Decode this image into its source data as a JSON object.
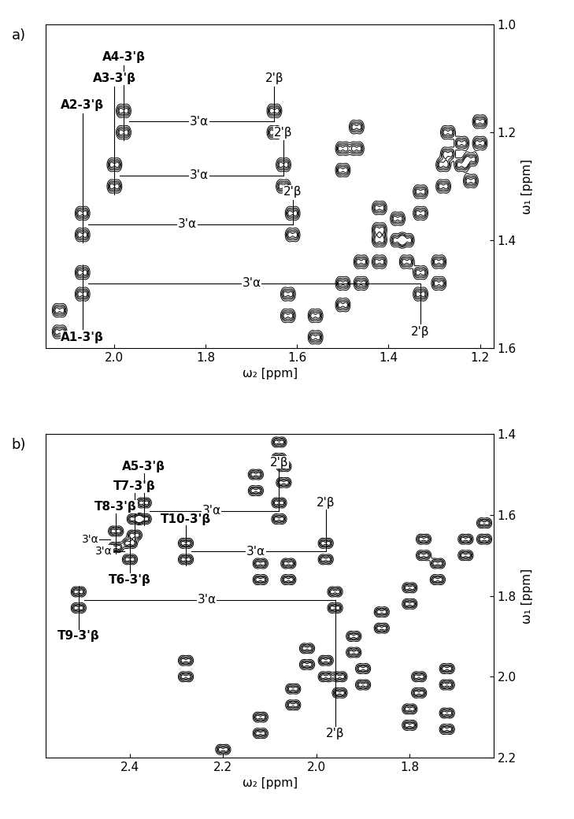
{
  "chart_data": [
    {
      "type": "contour",
      "title": "a)",
      "x_label": "ω₂ [ppm]",
      "y_label": "ω₁ [ppm]",
      "xlim": [
        2.15,
        1.17
      ],
      "ylim": [
        1.6,
        1.0
      ],
      "xticks": [
        2.0,
        1.8,
        1.6,
        1.4,
        1.2
      ],
      "yticks": [
        1.0,
        1.2,
        1.4,
        1.6
      ],
      "walks": [
        {
          "label": "A4-3'β",
          "x": 1.98,
          "y": 1.18,
          "alpha_label": "3'α",
          "beta_label": "2'β",
          "x2": 1.65
        },
        {
          "label": "A3-3'β",
          "x": 2.0,
          "y": 1.28,
          "alpha_label": "3'α",
          "beta_label": "2'β",
          "x2": 1.63
        },
        {
          "label": "A2-3'β",
          "x": 2.07,
          "y": 1.37,
          "alpha_label": "3'α",
          "beta_label": "2'β",
          "x2": 1.61
        },
        {
          "label": "A1-3'β",
          "x": 2.07,
          "y": 1.48,
          "alpha_label": "3'α",
          "beta_label": "2'β",
          "x2": 1.33
        }
      ],
      "peaks": [
        [
          1.62,
          1.52
        ],
        [
          1.5,
          1.25
        ],
        [
          1.47,
          1.21
        ],
        [
          1.29,
          1.46
        ],
        [
          1.56,
          1.56
        ],
        [
          1.5,
          1.5
        ],
        [
          1.46,
          1.46
        ],
        [
          1.42,
          1.42
        ],
        [
          1.38,
          1.38
        ],
        [
          1.33,
          1.33
        ],
        [
          1.28,
          1.28
        ],
        [
          1.24,
          1.24
        ],
        [
          1.2,
          1.2
        ],
        [
          1.42,
          1.36
        ],
        [
          1.36,
          1.42
        ],
        [
          1.27,
          1.22
        ],
        [
          1.22,
          1.27
        ],
        [
          2.12,
          1.55
        ]
      ]
    },
    {
      "type": "contour",
      "title": "b)",
      "x_label": "ω₂ [ppm]",
      "y_label": "ω₁ [ppm]",
      "xlim": [
        2.58,
        1.62
      ],
      "ylim": [
        2.2,
        1.4
      ],
      "xticks": [
        2.4,
        2.2,
        2.0,
        1.8
      ],
      "yticks": [
        1.4,
        1.6,
        1.8,
        2.0,
        2.2
      ],
      "walks": [
        {
          "label": "T9-3'β",
          "x": 2.51,
          "y": 1.81,
          "alpha_label": "3'α",
          "beta_label": "2'β",
          "x2": 1.96
        },
        {
          "label": "A5-3'β",
          "x": 2.37,
          "y": 1.59,
          "alpha_label": "3'α",
          "beta_label": "2'β",
          "x2": 2.08
        },
        {
          "label": "T7-3'β",
          "x": 2.39,
          "y": 1.63
        },
        {
          "label": "T8-3'β",
          "x": 2.43,
          "y": 1.66,
          "alpha_label": "3'α"
        },
        {
          "label": "T6-3'β",
          "x": 2.4,
          "y": 1.69,
          "alpha_label": "3'α"
        },
        {
          "label": "T10-3'β",
          "x": 2.28,
          "y": 1.69,
          "alpha_label": "3'α",
          "beta_label": "2'β",
          "x2": 1.98
        }
      ],
      "peaks": [
        [
          2.08,
          1.44
        ],
        [
          2.07,
          1.5
        ],
        [
          2.13,
          1.52
        ],
        [
          2.12,
          1.74
        ],
        [
          2.06,
          1.74
        ],
        [
          2.28,
          1.98
        ],
        [
          1.78,
          2.02
        ],
        [
          1.72,
          2.0
        ],
        [
          1.8,
          2.1
        ],
        [
          1.72,
          2.11
        ],
        [
          2.2,
          2.2
        ],
        [
          2.12,
          2.12
        ],
        [
          2.05,
          2.05
        ],
        [
          1.98,
          1.98
        ],
        [
          1.92,
          1.92
        ],
        [
          1.86,
          1.86
        ],
        [
          1.8,
          1.8
        ],
        [
          1.74,
          1.74
        ],
        [
          1.68,
          1.68
        ],
        [
          1.64,
          1.64
        ],
        [
          2.02,
          1.95
        ],
        [
          1.95,
          2.02
        ],
        [
          1.9,
          2.0
        ],
        [
          1.77,
          1.68
        ]
      ]
    }
  ]
}
